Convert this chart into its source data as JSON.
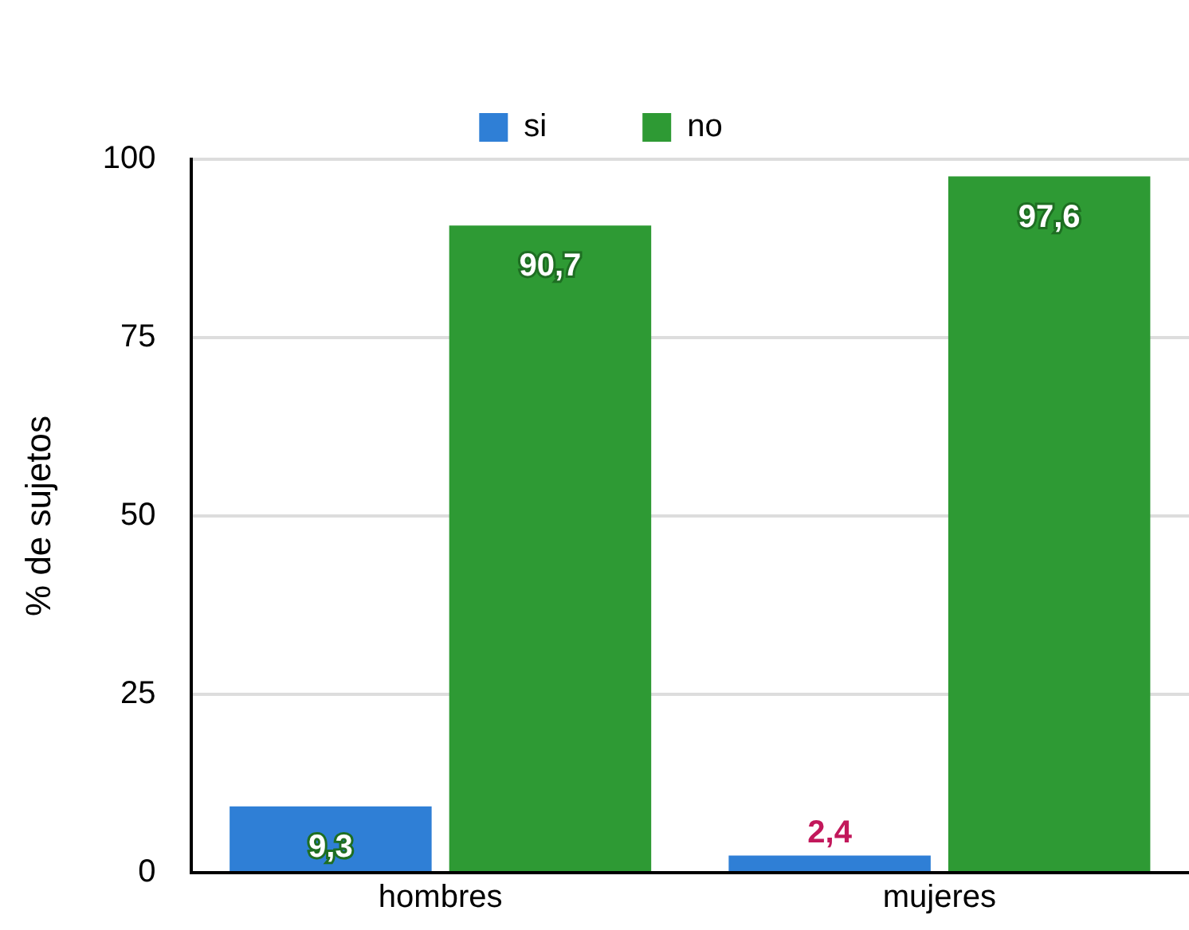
{
  "chart_data": {
    "type": "bar",
    "ylabel": "% de sujetos",
    "categories": [
      "hombres",
      "mujeres"
    ],
    "series": [
      {
        "name": "si",
        "color": "#2f7fd6",
        "values": [
          9.3,
          2.4
        ],
        "value_labels": [
          "9,3",
          "2,4"
        ]
      },
      {
        "name": "no",
        "color": "#2e9a34",
        "values": [
          90.7,
          97.6
        ],
        "value_labels": [
          "90,7",
          "97,6"
        ]
      }
    ],
    "ylim": [
      0,
      100
    ],
    "yticks": [
      0,
      25,
      50,
      75,
      100
    ],
    "grid": "y",
    "legend": "top"
  }
}
